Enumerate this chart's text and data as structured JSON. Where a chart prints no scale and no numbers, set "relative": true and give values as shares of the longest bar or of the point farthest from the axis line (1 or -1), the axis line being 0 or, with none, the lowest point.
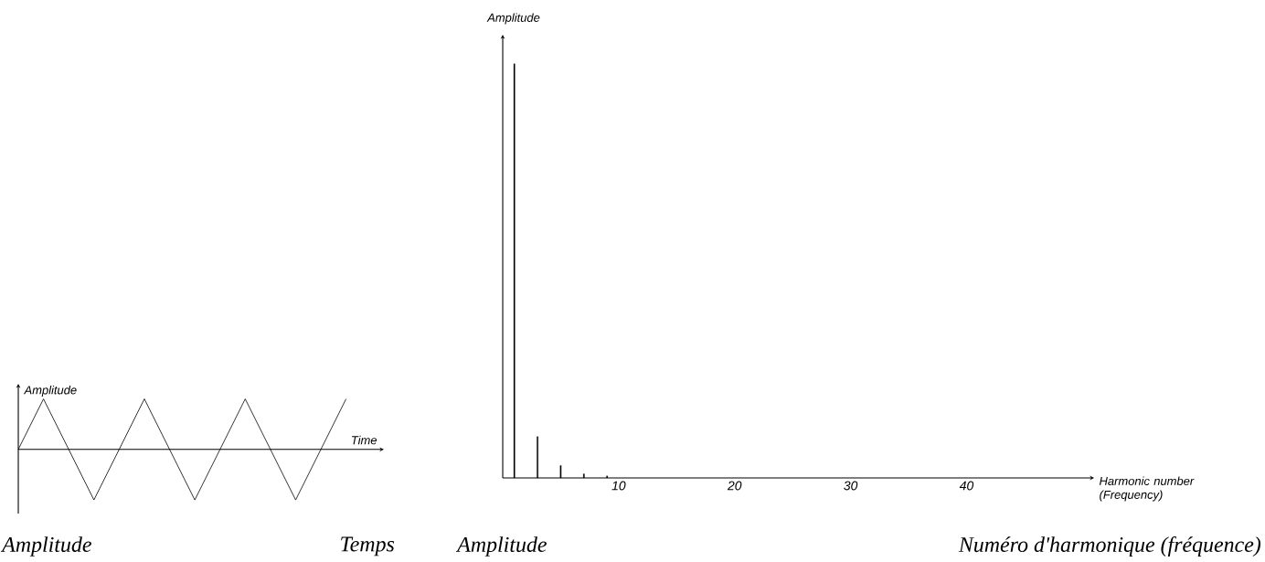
{
  "chart_data": [
    {
      "type": "line",
      "relative": true,
      "xlabel": "Time",
      "ylabel": "Amplitude",
      "categories": [
        null,
        null,
        null,
        null,
        null,
        null,
        null,
        null,
        null,
        null,
        null,
        null,
        null,
        null
      ],
      "values": [
        0,
        1,
        0,
        -1,
        0,
        1,
        0,
        -1,
        0,
        1,
        0,
        -1,
        0,
        1
      ],
      "color": "#000000",
      "annotations": [
        "Amplitude",
        "Temps"
      ]
    },
    {
      "type": "bar",
      "relative": true,
      "xlabel": "Harmonic number (Frequency)",
      "ylabel": "Amplitude",
      "x": [
        1,
        3,
        5,
        7,
        9
      ],
      "values": [
        1,
        0.1,
        0.03,
        0.01,
        0.005
      ],
      "xlim": [
        0,
        51
      ],
      "xticks": [
        10,
        20,
        30,
        40
      ],
      "color": "#000000",
      "annotations": [
        "Amplitude",
        "Numéro d'harmonique (fréquence)"
      ]
    }
  ]
}
